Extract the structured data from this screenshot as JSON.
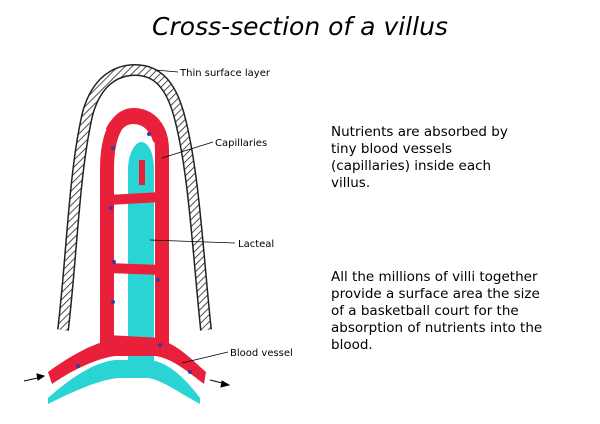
{
  "title": "Cross-section of a villus",
  "labels": {
    "surface": "Thin surface layer",
    "capillaries": "Capillaries",
    "lacteal": "Lacteal",
    "blood_vessel": "Blood vessel"
  },
  "paragraphs": {
    "p1": [
      "Nutrients are absorbed by",
      "tiny blood vessels",
      "(capillaries) inside each",
      "villus."
    ],
    "p2": [
      "All the millions of villi together",
      "provide a surface area the size",
      "of a basketball court for the",
      "absorption of nutrients into the",
      "blood."
    ]
  },
  "colors": {
    "capillary": "#e8203a",
    "lacteal": "#2ad4d4",
    "dots": "#3a3aa0",
    "outline": "#222222"
  }
}
